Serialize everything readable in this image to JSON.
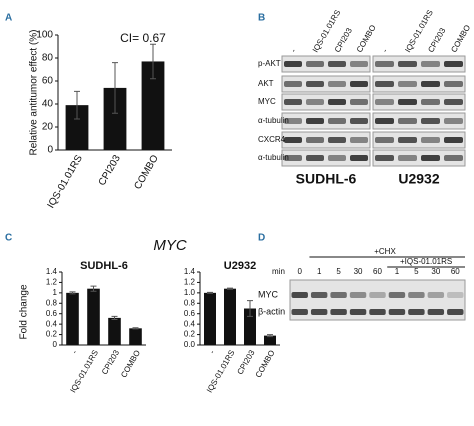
{
  "panels": {
    "a": "A",
    "b": "B",
    "c": "C",
    "d": "D"
  },
  "chart_data": [
    {
      "type": "bar",
      "annotation": "CI= 0.67",
      "y_label": "Relative antitumor effect (%)",
      "categories": [
        "IQS-01.01RS",
        "CPI203",
        "COMBO"
      ],
      "values": [
        39,
        54,
        77
      ],
      "errors": [
        12,
        22,
        15
      ],
      "color": "#111111",
      "ylim": [
        0,
        100
      ],
      "yticks": [
        0,
        20,
        40,
        60,
        80,
        100
      ]
    },
    {
      "type": "bar",
      "title": "SUDHL-6",
      "categories": [
        "-",
        "IQS-01.01RS",
        "CPI203",
        "COMBO"
      ],
      "values": [
        1,
        1.08,
        0.52,
        0.32
      ],
      "errors": [
        0.02,
        0.05,
        0.03,
        0.01
      ],
      "color": "#111111",
      "ylim": [
        0,
        1.4
      ],
      "yticks": [
        0,
        0.2,
        0.4,
        0.6,
        0.8,
        1,
        1.2,
        1.4
      ]
    },
    {
      "type": "bar",
      "title": "U2932",
      "categories": [
        "-",
        "IQS-01.01RS",
        "CPI203",
        "COMBO"
      ],
      "values": [
        1,
        1.08,
        0.7,
        0.18
      ],
      "errors": [
        0.01,
        0.01,
        0.15,
        0.02
      ],
      "color": "#111111",
      "ylim": [
        0,
        1.4
      ],
      "yticks": [
        {
          "value": 0,
          "label": "0.0"
        },
        0.2,
        0.4,
        0.6,
        0.8,
        {
          "value": 1,
          "label": "1.0"
        },
        1.2,
        1.4
      ]
    }
  ],
  "figure_c": {
    "title": "MYC",
    "y_label": "Fold change"
  },
  "blot_b": {
    "lanes": [
      "-",
      "IQS-01.01RS",
      "CPI203",
      "COMBO"
    ],
    "rows": [
      "p-AKT",
      "AKT",
      "MYC",
      "α-tubulin",
      "CXCR4",
      "α-tubulin"
    ],
    "cell_lines": [
      "SUDHL-6",
      "U2932"
    ]
  },
  "blot_d": {
    "treatment": "+CHX",
    "cotreatment": "+IQS-01.01RS",
    "time_label": "min",
    "times": [
      "0",
      "1",
      "5",
      "30",
      "60",
      "1",
      "5",
      "30",
      "60"
    ],
    "rows": [
      "MYC",
      "β-actin"
    ]
  }
}
